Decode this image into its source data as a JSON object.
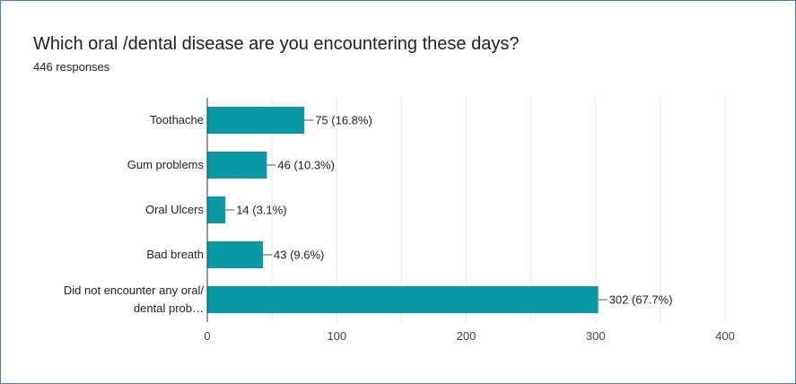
{
  "form_summary": {
    "question": "Which oral /dental disease are you encountering these days?",
    "responses": "446 responses"
  },
  "chart_data": {
    "type": "bar",
    "orientation": "horizontal",
    "categories": [
      [
        "Toothache"
      ],
      [
        "Gum problems"
      ],
      [
        "Oral Ulcers"
      ],
      [
        "Bad breath"
      ],
      [
        "Did not encounter any oral/",
        "dental prob…"
      ]
    ],
    "values": [
      75,
      46,
      14,
      43,
      302
    ],
    "data_labels": [
      "75 (16.8%)",
      "46 (10.3%)",
      "14 (3.1%)",
      "43 (9.6%)",
      "302 (67.7%)"
    ],
    "xlim": [
      0,
      400
    ],
    "xticks": [
      0,
      100,
      200,
      300,
      400
    ],
    "grid": true,
    "bar_color": "#0a9aa5",
    "title": "",
    "xlabel": "",
    "ylabel": ""
  }
}
